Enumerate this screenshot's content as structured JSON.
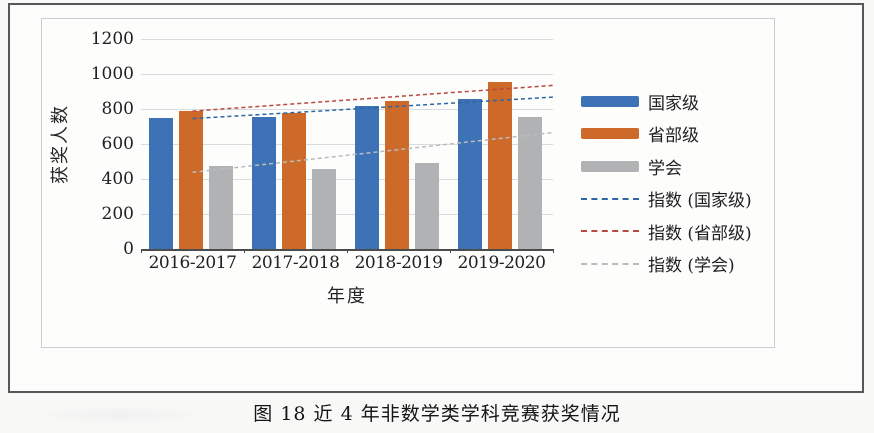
{
  "page": {
    "caption": "图 18  近 4 年非数学类学科竞赛获奖情况"
  },
  "chart_data": {
    "type": "bar",
    "title": "图 18 近 4 年非数学类学科竞赛获奖情况",
    "xlabel": "年度",
    "ylabel": "获奖人数",
    "categories": [
      "2016-2017",
      "2017-2018",
      "2018-2019",
      "2019-2020"
    ],
    "series": [
      {
        "name": "国家级",
        "color": "#3d73b6",
        "values": [
          750,
          755,
          815,
          855
        ]
      },
      {
        "name": "省部级",
        "color": "#cd6929",
        "values": [
          790,
          780,
          845,
          955
        ]
      },
      {
        "name": "学会",
        "color": "#b0b2b3",
        "values": [
          475,
          460,
          490,
          755
        ]
      }
    ],
    "trendlines": [
      {
        "name": "指数 (国家级)",
        "kind": "exponential",
        "color": "#2e66a4",
        "start": 745,
        "end": 868
      },
      {
        "name": "指数 (省部级)",
        "kind": "exponential",
        "color": "#b9493e",
        "start": 788,
        "end": 935
      },
      {
        "name": "指数 (学会)",
        "kind": "exponential",
        "color": "#b9bcbe",
        "start": 438,
        "end": 665
      }
    ],
    "ylim": [
      0,
      1200
    ],
    "ytick_step": 200,
    "grid": true,
    "legend_position": "right"
  }
}
